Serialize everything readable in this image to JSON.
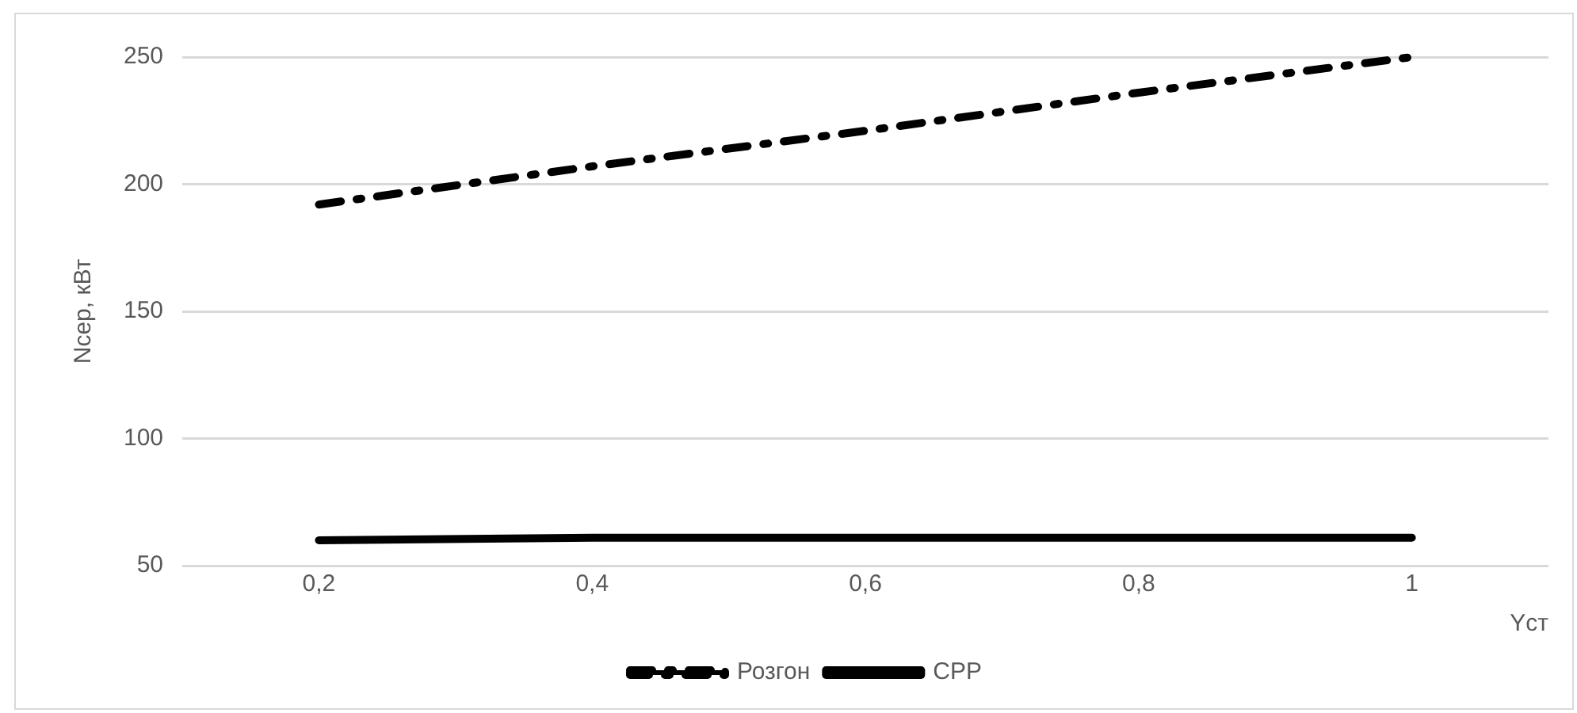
{
  "chart_data": {
    "type": "line",
    "xlabel": "Yст",
    "ylabel": "Nсер, кВт",
    "x": [
      0.2,
      0.4,
      0.6,
      0.8,
      1
    ],
    "series": [
      {
        "name": "Розгон",
        "color": "#000000",
        "line_style": "dashed",
        "values": [
          192,
          207,
          221,
          236,
          250
        ]
      },
      {
        "name": "СРР",
        "color": "#000000",
        "line_style": "solid",
        "values": [
          60,
          61,
          61,
          61,
          61
        ]
      }
    ],
    "xlim": [
      0.1,
      1.1
    ],
    "xticks": [
      {
        "value": 0.2,
        "label": "0,2"
      },
      {
        "value": 0.4,
        "label": "0,4"
      },
      {
        "value": 0.6,
        "label": "0,6"
      },
      {
        "value": 0.8,
        "label": "0,8"
      },
      {
        "value": 1,
        "label": "1"
      }
    ],
    "ylim": [
      50,
      250
    ],
    "yticks": [
      50,
      100,
      150,
      200,
      250
    ],
    "grid": "y",
    "legend": "bottom",
    "marker": "none"
  }
}
